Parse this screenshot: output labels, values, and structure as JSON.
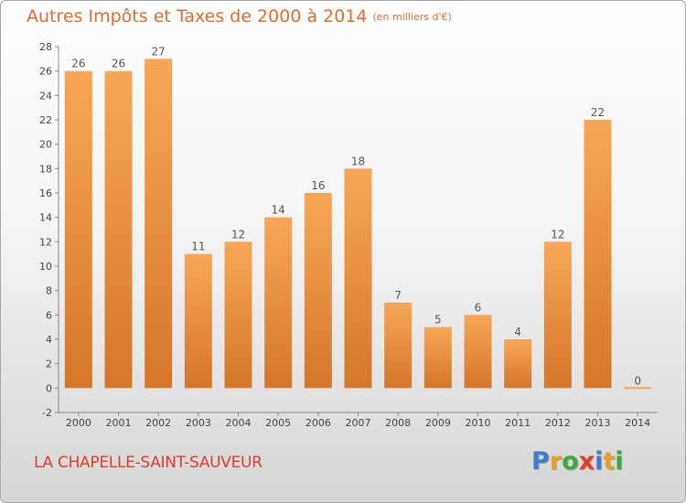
{
  "title": {
    "main": "Autres Impôts et Taxes de 2000 à 2014",
    "unit": "(en milliers d'€)"
  },
  "location": "LA CHAPELLE-SAINT-SAUVEUR",
  "logo": {
    "letters": [
      "P",
      "r",
      "o",
      "x",
      "i",
      "t",
      "i"
    ],
    "colors": [
      "#3c7fc8",
      "#e8a21f",
      "#3cab3c",
      "#e03c2a",
      "#3c7fc8",
      "#e8a21f",
      "#3cab3c"
    ]
  },
  "chart_data": {
    "type": "bar",
    "categories": [
      "2000",
      "2001",
      "2002",
      "2003",
      "2004",
      "2005",
      "2006",
      "2007",
      "2008",
      "2009",
      "2010",
      "2011",
      "2012",
      "2013",
      "2014"
    ],
    "values": [
      26,
      26,
      27,
      11,
      12,
      14,
      16,
      18,
      7,
      5,
      6,
      4,
      12,
      22,
      0
    ],
    "y_ticks": [
      "-2",
      "0",
      "2",
      "4",
      "6",
      "8",
      "10",
      "12",
      "14",
      "16",
      "18",
      "20",
      "22",
      "24",
      "26",
      "28"
    ],
    "ylim": [
      -2,
      28
    ],
    "grid": false,
    "colors": {
      "bar_light": "#f7a757",
      "bar_dark": "#d4772a",
      "label": "#555555",
      "axis": "#888888"
    }
  }
}
